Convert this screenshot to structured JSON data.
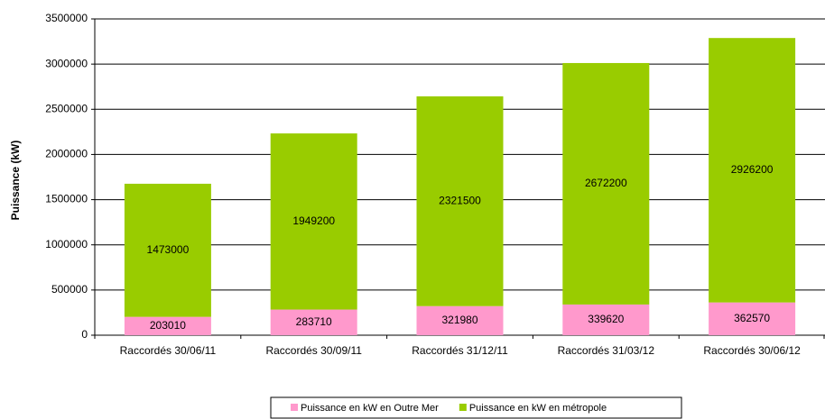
{
  "chart_data": {
    "type": "stacked_bar",
    "ylabel": "Puissance (kW)",
    "categories": [
      "Raccordés 30/06/11",
      "Raccordés 30/09/11",
      "Raccordés 31/12/11",
      "Raccordés 31/03/12",
      "Raccordés 30/06/12"
    ],
    "series": [
      {
        "name": "Puissance en kW en Outre Mer",
        "color": "#ff99cc",
        "values": [
          203010,
          283710,
          321980,
          339620,
          362570
        ]
      },
      {
        "name": "Puissance en kW en métropole",
        "color": "#99cc00",
        "values": [
          1473000,
          1949200,
          2321500,
          2672200,
          2926200
        ]
      }
    ],
    "ylim": [
      0,
      3500000
    ],
    "yticks": [
      0,
      500000,
      1000000,
      1500000,
      2000000,
      2500000,
      3000000,
      3500000
    ],
    "grid": true,
    "legend": "bottom"
  }
}
